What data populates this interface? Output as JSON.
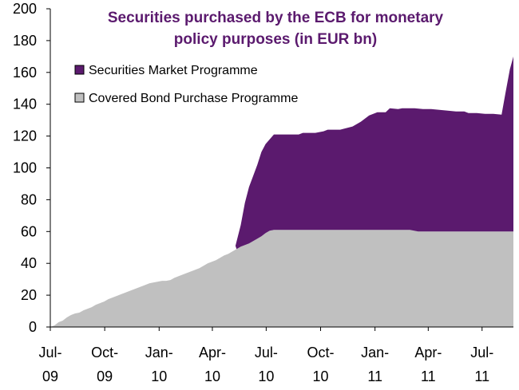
{
  "chart_data": {
    "type": "area",
    "stacked": true,
    "title": "Securities purchased by the ECB for monetary policy purposes (in EUR bn)",
    "title_lines": [
      "Securities purchased by the ECB for monetary",
      "policy purposes (in EUR bn)"
    ],
    "xlabel": "",
    "ylabel": "",
    "ylim": [
      0,
      200
    ],
    "ytick_step": 20,
    "yticks": [
      "0",
      "20",
      "40",
      "60",
      "80",
      "100",
      "120",
      "140",
      "160",
      "180",
      "200"
    ],
    "xlim": [
      "2009-07-01",
      "2011-08-23"
    ],
    "xticks": [
      {
        "date": "2009-07-01",
        "line1": "Jul-",
        "line2": "09"
      },
      {
        "date": "2009-10-01",
        "line1": "Oct-",
        "line2": "09"
      },
      {
        "date": "2010-01-01",
        "line1": "Jan-",
        "line2": "10"
      },
      {
        "date": "2010-04-01",
        "line1": "Apr-",
        "line2": "10"
      },
      {
        "date": "2010-07-01",
        "line1": "Jul-",
        "line2": "10"
      },
      {
        "date": "2010-10-01",
        "line1": "Oct-",
        "line2": "10"
      },
      {
        "date": "2011-01-01",
        "line1": "Jan-",
        "line2": "11"
      },
      {
        "date": "2011-04-01",
        "line1": "Apr-",
        "line2": "11"
      },
      {
        "date": "2011-07-01",
        "line1": "Jul-",
        "line2": "11"
      }
    ],
    "grid": false,
    "legend_position": "top-left",
    "series": [
      {
        "name": "Covered Bond Purchase Programme",
        "color": "#c0c0c0",
        "points": [
          [
            "2009-07-01",
            0
          ],
          [
            "2009-07-08",
            1
          ],
          [
            "2009-07-15",
            3
          ],
          [
            "2009-07-22",
            4
          ],
          [
            "2009-07-29",
            6
          ],
          [
            "2009-08-05",
            7.5
          ],
          [
            "2009-08-12",
            8.5
          ],
          [
            "2009-08-19",
            9
          ],
          [
            "2009-08-26",
            10.5
          ],
          [
            "2009-09-02",
            11.5
          ],
          [
            "2009-09-09",
            12.5
          ],
          [
            "2009-09-16",
            14
          ],
          [
            "2009-09-23",
            15
          ],
          [
            "2009-09-30",
            16
          ],
          [
            "2009-10-07",
            17.5
          ],
          [
            "2009-10-14",
            18.5
          ],
          [
            "2009-10-21",
            19.5
          ],
          [
            "2009-10-28",
            20.5
          ],
          [
            "2009-11-04",
            21.5
          ],
          [
            "2009-11-11",
            22.5
          ],
          [
            "2009-11-18",
            23.5
          ],
          [
            "2009-11-25",
            24.5
          ],
          [
            "2009-12-02",
            25.5
          ],
          [
            "2009-12-09",
            26.5
          ],
          [
            "2009-12-16",
            27.5
          ],
          [
            "2009-12-23",
            28
          ],
          [
            "2009-12-30",
            28.5
          ],
          [
            "2010-01-06",
            29
          ],
          [
            "2010-01-13",
            29
          ],
          [
            "2010-01-20",
            29.5
          ],
          [
            "2010-01-27",
            31
          ],
          [
            "2010-02-03",
            32
          ],
          [
            "2010-02-10",
            33
          ],
          [
            "2010-02-17",
            34
          ],
          [
            "2010-02-24",
            35
          ],
          [
            "2010-03-03",
            36
          ],
          [
            "2010-03-10",
            37
          ],
          [
            "2010-03-17",
            38.5
          ],
          [
            "2010-03-24",
            40
          ],
          [
            "2010-03-31",
            41
          ],
          [
            "2010-04-07",
            42
          ],
          [
            "2010-04-14",
            43.5
          ],
          [
            "2010-04-21",
            45
          ],
          [
            "2010-04-28",
            46
          ],
          [
            "2010-05-05",
            47.5
          ],
          [
            "2010-05-12",
            49
          ],
          [
            "2010-05-19",
            50.5
          ],
          [
            "2010-05-26",
            51.5
          ],
          [
            "2010-06-02",
            52.5
          ],
          [
            "2010-06-09",
            54
          ],
          [
            "2010-06-16",
            55.5
          ],
          [
            "2010-06-23",
            57
          ],
          [
            "2010-06-30",
            59
          ],
          [
            "2010-07-07",
            60.5
          ],
          [
            "2010-07-14",
            61
          ],
          [
            "2010-09-01",
            61
          ],
          [
            "2011-01-01",
            61
          ],
          [
            "2011-03-01",
            61
          ],
          [
            "2011-03-15",
            60
          ],
          [
            "2011-08-23",
            60
          ]
        ]
      },
      {
        "name": "Securities Market Programme",
        "color": "#5b1a6e",
        "total_points": [
          [
            "2010-05-10",
            51
          ],
          [
            "2010-05-19",
            64
          ],
          [
            "2010-05-26",
            78
          ],
          [
            "2010-06-02",
            88
          ],
          [
            "2010-06-09",
            95
          ],
          [
            "2010-06-16",
            102
          ],
          [
            "2010-06-23",
            110
          ],
          [
            "2010-06-30",
            115
          ],
          [
            "2010-07-07",
            118
          ],
          [
            "2010-07-14",
            121
          ],
          [
            "2010-08-04",
            121
          ],
          [
            "2010-08-25",
            121
          ],
          [
            "2010-09-01",
            122
          ],
          [
            "2010-09-22",
            122
          ],
          [
            "2010-10-06",
            123
          ],
          [
            "2010-10-13",
            124
          ],
          [
            "2010-11-03",
            124
          ],
          [
            "2010-11-24",
            126
          ],
          [
            "2010-12-08",
            129
          ],
          [
            "2010-12-22",
            133
          ],
          [
            "2011-01-05",
            135
          ],
          [
            "2011-01-19",
            135
          ],
          [
            "2011-01-26",
            137.5
          ],
          [
            "2011-02-09",
            137
          ],
          [
            "2011-02-16",
            137.5
          ],
          [
            "2011-03-09",
            137.5
          ],
          [
            "2011-03-23",
            137
          ],
          [
            "2011-04-06",
            137
          ],
          [
            "2011-04-20",
            136.5
          ],
          [
            "2011-05-04",
            136
          ],
          [
            "2011-05-18",
            135.5
          ],
          [
            "2011-06-01",
            135.5
          ],
          [
            "2011-06-08",
            134.5
          ],
          [
            "2011-06-22",
            134.5
          ],
          [
            "2011-07-06",
            134
          ],
          [
            "2011-07-20",
            134
          ],
          [
            "2011-08-03",
            133.5
          ],
          [
            "2011-08-10",
            148
          ],
          [
            "2011-08-17",
            162
          ],
          [
            "2011-08-23",
            170
          ]
        ]
      }
    ]
  }
}
